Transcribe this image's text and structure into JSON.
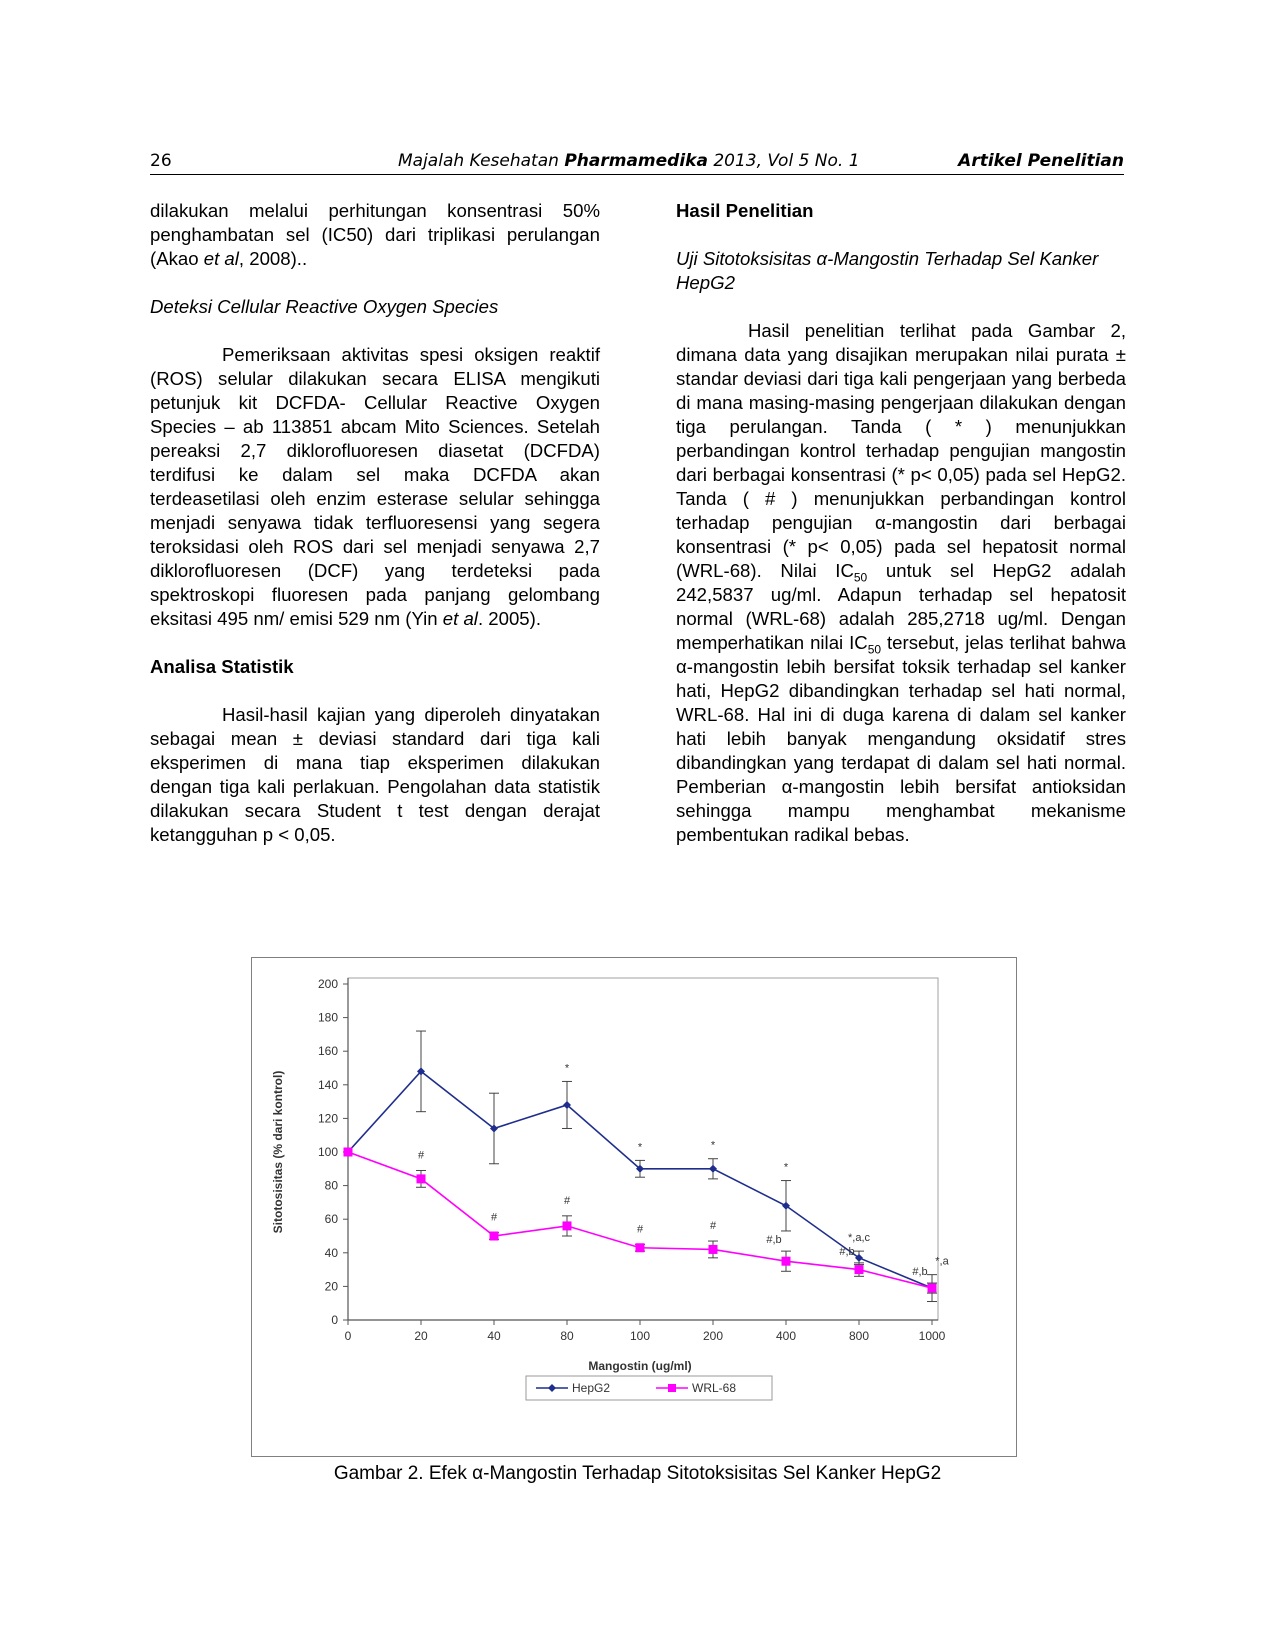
{
  "header": {
    "page_number": "26",
    "journal_prefix": "Majalah Kesehatan ",
    "journal_bold": "Pharmamedika",
    "journal_suffix": " 2013, Vol 5 No. 1",
    "article_type": "Artikel Penelitian"
  },
  "left_column": {
    "p1_a": "dilakukan melalui perhitungan konsentrasi 50% penghambatan sel (IC50) dari triplikasi perulangan (Akao ",
    "p1_b": "et al",
    "p1_c": ", 2008)..",
    "subheading_ros": "Deteksi Cellular Reactive Oxygen Species",
    "p2_a": "Pemeriksaan aktivitas spesi oksigen reaktif (ROS) selular dilakukan secara ELISA mengikuti petunjuk kit DCFDA- Cellular Reactive Oxygen Species – ab 113851 abcam Mito Sciences. Setelah pereaksi 2,7 diklorofluoresen diasetat (DCFDA) terdifusi ke dalam sel maka DCFDA akan terdeasetilasi oleh enzim esterase selular sehingga menjadi senyawa tidak terfluoresensi yang segera teroksidasi oleh ROS dari sel menjadi senyawa 2,7 diklorofluoresen (DCF) yang terdeteksi pada spektroskopi fluoresen pada panjang gelombang eksitasi 495 nm/ emisi 529 nm (Yin ",
    "p2_b": "et al",
    "p2_c": ". 2005).",
    "heading_stat": "Analisa Statistik",
    "p3": "Hasil-hasil kajian yang diperoleh dinyatakan sebagai mean ± deviasi standard dari tiga kali eksperimen di mana tiap eksperimen dilakukan dengan tiga kali perlakuan. Pengolahan data statistik dilakukan secara Student t test dengan derajat ketangguhan p < 0,05."
  },
  "right_column": {
    "heading_results": "Hasil Penelitian",
    "subheading_test": "Uji Sitotoksisitas α-Mangostin Terhadap Sel Kanker HepG2",
    "p1_a": "Hasil penelitian terlihat pada Gambar 2, dimana data yang disajikan merupakan nilai purata ± standar deviasi dari tiga kali pengerjaan yang berbeda di mana masing-masing pengerjaan dilakukan dengan tiga perulangan. Tanda ( * ) menunjukkan perbandingan kontrol terhadap pengujian mangostin dari berbagai konsentrasi (* p< 0,05) pada sel HepG2. Tanda ( # ) menunjukkan perbandingan kontrol terhadap pengujian α-mangostin dari berbagai konsentrasi (* p< 0,05) pada sel hepatosit normal (WRL-68). Nilai IC",
    "p1_sub1": "50",
    "p1_b": " untuk sel HepG2 adalah 242,5837 ug/ml. Adapun terhadap sel hepatosit normal (WRL-68) adalah 285,2718 ug/ml. Dengan memperhatikan nilai IC",
    "p1_sub2": "50",
    "p1_c": " tersebut, jelas terlihat bahwa α-mangostin lebih bersifat toksik terhadap sel kanker hati, HepG2 dibandingkan terhadap sel hati normal, WRL-68. Hal ini di duga karena di dalam sel kanker hati lebih banyak mengandung oksidatif stres dibandingkan yang terdapat di dalam sel hati normal. Pemberian α-mangostin lebih bersifat antioksidan sehingga mampu menghambat mekanisme pembentukan radikal bebas."
  },
  "caption": "Gambar 2. Efek α-Mangostin Terhadap Sitotoksisitas Sel Kanker HepG2",
  "chart_data": {
    "type": "line",
    "categories": [
      "0",
      "20",
      "40",
      "80",
      "100",
      "200",
      "400",
      "800",
      "1000"
    ],
    "xlabel": "Mangostin (ug/ml)",
    "ylabel": "Sitotosisitas (% dari kontrol)",
    "ylim": [
      0,
      200
    ],
    "yticks": [
      0,
      20,
      40,
      60,
      80,
      100,
      120,
      140,
      160,
      180,
      200
    ],
    "grid": false,
    "legend": "bottom",
    "series": [
      {
        "name": "HepG2",
        "color": "#1f2e8c",
        "marker": "diamond",
        "values": [
          100,
          148,
          114,
          128,
          90,
          90,
          68,
          37,
          19
        ],
        "errors": [
          0,
          24,
          21,
          14,
          5,
          6,
          15,
          4,
          8
        ],
        "annotations": [
          "",
          "",
          "",
          "*",
          "*",
          "*",
          "*",
          "*,a,c",
          "*,a"
        ]
      },
      {
        "name": "WRL-68",
        "color": "#ff00ff",
        "marker": "square",
        "values": [
          100,
          84,
          50,
          56,
          43,
          42,
          35,
          30,
          19
        ],
        "errors": [
          0,
          5,
          2,
          6,
          2,
          5,
          6,
          4,
          3
        ],
        "annotations": [
          "",
          "#",
          "#",
          "#",
          "#",
          "#",
          "#,b",
          "#,b",
          "#,b"
        ]
      }
    ]
  }
}
